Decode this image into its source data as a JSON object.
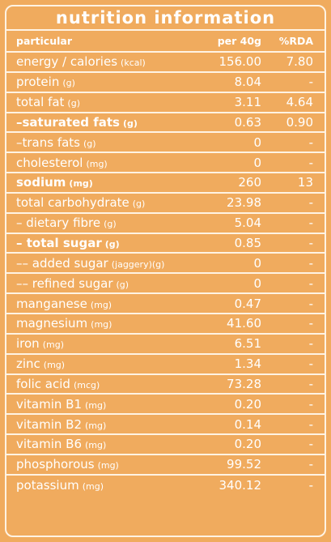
{
  "title": "nutrition information",
  "headers": {
    "particular": "particular",
    "per": "per 40g",
    "rda": "%RDA"
  },
  "rows": [
    {
      "name": "energy / calories",
      "unit": "(kcal)",
      "value": "156.00",
      "rda": "7.80",
      "bold": false
    },
    {
      "name": "protein",
      "unit": "(g)",
      "value": "8.04",
      "rda": "-",
      "bold": false
    },
    {
      "name": "total fat",
      "unit": "(g)",
      "value": "3.11",
      "rda": "4.64",
      "bold": false
    },
    {
      "name": "–saturated fats",
      "unit": "(g)",
      "value": "0.63",
      "rda": "0.90",
      "bold": true
    },
    {
      "name": "–trans fats",
      "unit": "(g)",
      "value": "0",
      "rda": "-",
      "bold": false
    },
    {
      "name": "cholesterol",
      "unit": "(mg)",
      "value": "0",
      "rda": "-",
      "bold": false
    },
    {
      "name": "sodium",
      "unit": "(mg)",
      "value": "260",
      "rda": "13",
      "bold": true
    },
    {
      "name": "total carbohydrate",
      "unit": "(g)",
      "value": "23.98",
      "rda": "-",
      "bold": false
    },
    {
      "name": "– dietary fibre",
      "unit": "(g)",
      "value": "5.04",
      "rda": "-",
      "bold": false
    },
    {
      "name": "– total sugar",
      "unit": "(g)",
      "value": "0.85",
      "rda": "-",
      "bold": true
    },
    {
      "name": "–– added sugar",
      "unit": "(jaggery)(g)",
      "value": "0",
      "rda": "-",
      "bold": false
    },
    {
      "name": "–– refined sugar",
      "unit": "(g)",
      "value": "0",
      "rda": "-",
      "bold": false
    },
    {
      "name": "manganese",
      "unit": "(mg)",
      "value": "0.47",
      "rda": "-",
      "bold": false
    },
    {
      "name": "magnesium",
      "unit": "(mg)",
      "value": "41.60",
      "rda": "-",
      "bold": false
    },
    {
      "name": "iron",
      "unit": "(mg)",
      "value": "6.51",
      "rda": "-",
      "bold": false
    },
    {
      "name": "zinc",
      "unit": "(mg)",
      "value": "1.34",
      "rda": "-",
      "bold": false
    },
    {
      "name": "folic acid",
      "unit": "(mcg)",
      "value": "73.28",
      "rda": "-",
      "bold": false
    },
    {
      "name": "vitamin B1",
      "unit": "(mg)",
      "value": "0.20",
      "rda": "-",
      "bold": false
    },
    {
      "name": "vitamin B2",
      "unit": "(mg)",
      "value": "0.14",
      "rda": "-",
      "bold": false
    },
    {
      "name": "vitamin B6",
      "unit": "(mg)",
      "value": "0.20",
      "rda": "-",
      "bold": false
    },
    {
      "name": "phosphorous",
      "unit": "(mg)",
      "value": "99.52",
      "rda": "-",
      "bold": false
    },
    {
      "name": "potassium",
      "unit": "(mg)",
      "value": "340.12",
      "rda": "-",
      "bold": false
    }
  ],
  "colors": {
    "background": "#f0ab5e",
    "lines": "#fff3e3",
    "text": "#ffffff"
  }
}
